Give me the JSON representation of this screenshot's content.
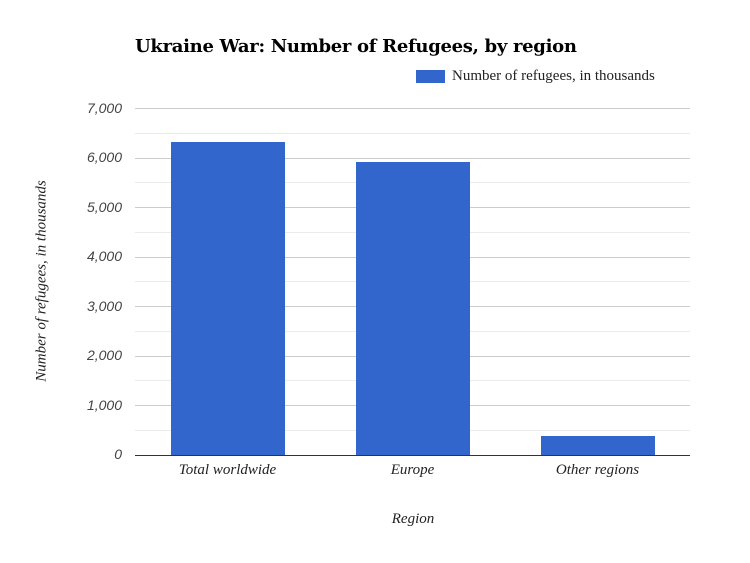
{
  "chart_data": {
    "type": "bar",
    "title": "Ukraine War: Number of Refugees, by region",
    "xlabel": "Region",
    "ylabel": "Number of refugees, in thousands",
    "categories": [
      "Total worldwide",
      "Europe",
      "Other regions"
    ],
    "series": [
      {
        "name": "Number of refugees, in thousands",
        "color": "#3366cc",
        "values": [
          6320,
          5920,
          390
        ]
      }
    ],
    "ylim": [
      0,
      7000
    ],
    "yticks": [
      0,
      1000,
      2000,
      3000,
      4000,
      5000,
      6000,
      7000
    ],
    "ytick_labels": [
      "0",
      "1,000",
      "2,000",
      "3,000",
      "4,000",
      "5,000",
      "6,000",
      "7,000"
    ],
    "grid": true,
    "legend_position": "top-right"
  },
  "colors": {
    "bar": "#3366cc",
    "grid_major": "#cccccc",
    "grid_minor": "#ebebeb",
    "axis": "#333333"
  }
}
